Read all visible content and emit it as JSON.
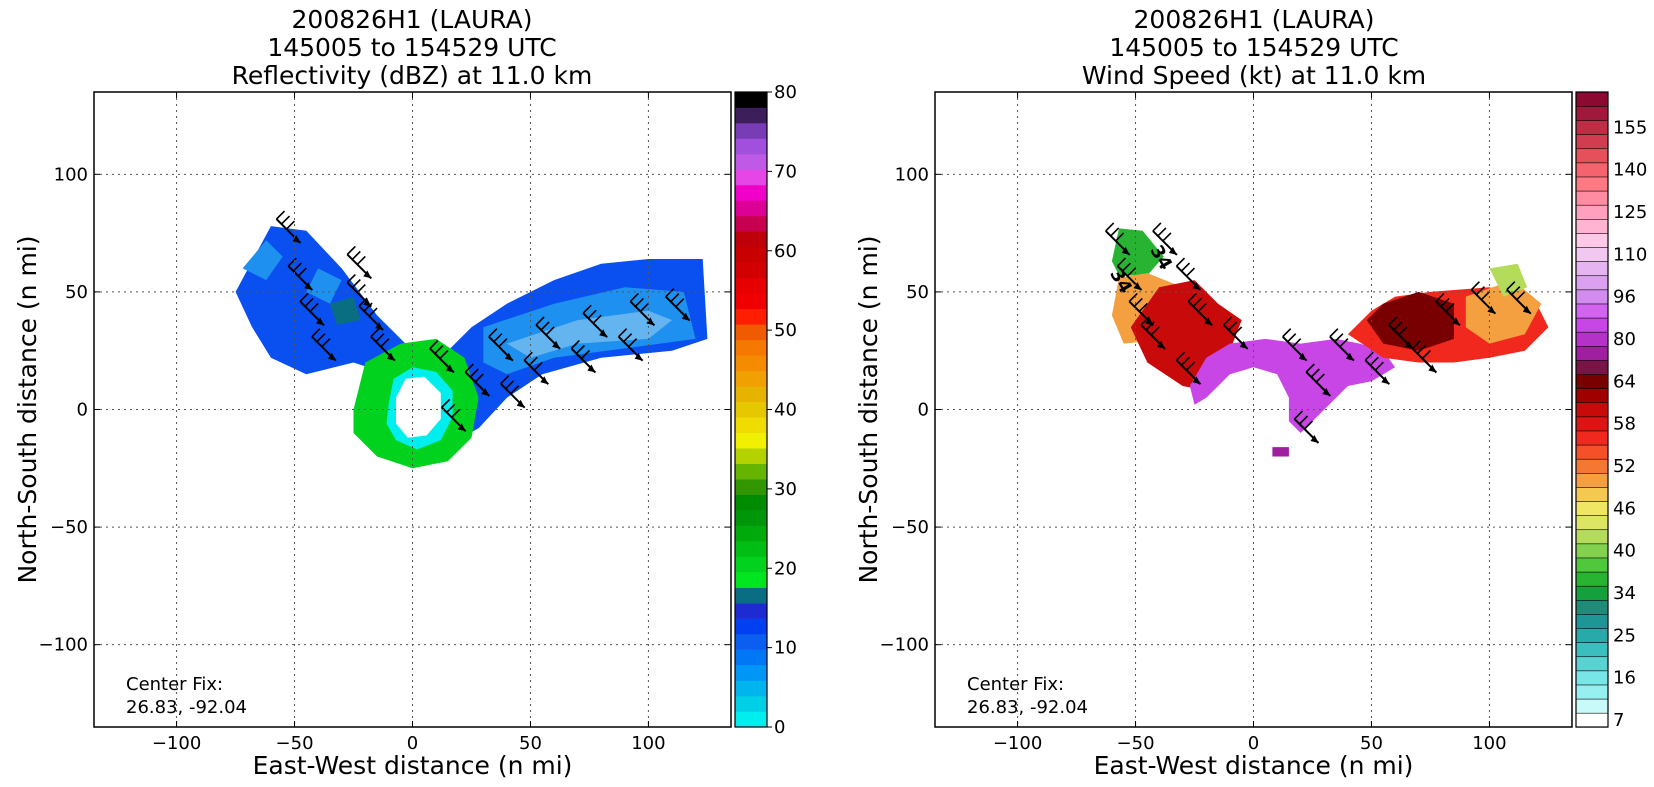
{
  "chart_data": [
    {
      "type": "heatmap",
      "title_lines": [
        "200826H1 (LAURA)",
        "145005 to 154529 UTC",
        "Reflectivity (dBZ) at 11.0 km"
      ],
      "xlabel": "East-West distance (n mi)",
      "ylabel": "North-South distance (n mi)",
      "xlim": [
        -135,
        135
      ],
      "ylim": [
        -135,
        135
      ],
      "xticks": [
        -100,
        -50,
        0,
        50,
        100
      ],
      "yticks": [
        -100,
        -50,
        0,
        50,
        100
      ],
      "grid": true,
      "annotation": [
        "Center Fix:",
        "26.83, -92.04"
      ],
      "colorbar": {
        "range": [
          0,
          80
        ],
        "tick_labels": [
          "0",
          "10",
          "20",
          "30",
          "40",
          "50",
          "60",
          "70",
          "80"
        ],
        "tick_values": [
          0,
          10,
          20,
          30,
          40,
          50,
          60,
          70,
          80
        ],
        "colors": [
          "#00eeee",
          "#00d0e6",
          "#00b4ee",
          "#0096f5",
          "#0078f5",
          "#0a5ef0",
          "#0040f0",
          "#1e2ad2",
          "#0a6e82",
          "#00e61e",
          "#00d21e",
          "#00be14",
          "#00aa0a",
          "#00960a",
          "#008c00",
          "#329600",
          "#64b400",
          "#b4d200",
          "#f0f000",
          "#f0dc00",
          "#e6c800",
          "#e6b400",
          "#f0a000",
          "#f58c00",
          "#f57800",
          "#f05a00",
          "#ff1e00",
          "#f00000",
          "#e60000",
          "#d20000",
          "#c80000",
          "#be000a",
          "#c80050",
          "#dc0096",
          "#f000c8",
          "#e646e6",
          "#be5ae6",
          "#a050dc",
          "#783cb4",
          "#3c1e5a",
          "#000000"
        ]
      },
      "regions": [
        {
          "color": "#0a4ff0",
          "polygon": [
            [
              -75,
              50
            ],
            [
              -60,
              78
            ],
            [
              -45,
              76
            ],
            [
              -30,
              60
            ],
            [
              -15,
              40
            ],
            [
              -5,
              30
            ],
            [
              0,
              25
            ],
            [
              -10,
              15
            ],
            [
              -25,
              20
            ],
            [
              -45,
              15
            ],
            [
              -60,
              22
            ],
            [
              -68,
              35
            ]
          ]
        },
        {
          "color": "#1e90f0",
          "polygon": [
            [
              -72,
              60
            ],
            [
              -62,
              72
            ],
            [
              -55,
              65
            ],
            [
              -62,
              55
            ]
          ]
        },
        {
          "color": "#1e90f0",
          "polygon": [
            [
              -40,
              60
            ],
            [
              -30,
              55
            ],
            [
              -35,
              45
            ],
            [
              -45,
              50
            ]
          ]
        },
        {
          "color": "#0a6e82",
          "polygon": [
            [
              -35,
              45
            ],
            [
              -25,
              48
            ],
            [
              -22,
              38
            ],
            [
              -32,
              36
            ]
          ]
        },
        {
          "color": "#0a4ff0",
          "polygon": [
            [
              25,
              35
            ],
            [
              40,
              45
            ],
            [
              60,
              55
            ],
            [
              80,
              62
            ],
            [
              100,
              64
            ],
            [
              123,
              64
            ],
            [
              125,
              30
            ],
            [
              110,
              25
            ],
            [
              80,
              22
            ],
            [
              55,
              15
            ],
            [
              40,
              5
            ],
            [
              28,
              -8
            ],
            [
              15,
              -15
            ],
            [
              5,
              -15
            ],
            [
              15,
              10
            ],
            [
              15,
              25
            ]
          ]
        },
        {
          "color": "#1e90f0",
          "polygon": [
            [
              30,
              35
            ],
            [
              60,
              45
            ],
            [
              90,
              52
            ],
            [
              115,
              50
            ],
            [
              120,
              30
            ],
            [
              90,
              26
            ],
            [
              60,
              22
            ],
            [
              40,
              15
            ],
            [
              30,
              20
            ]
          ]
        },
        {
          "color": "#64b4f0",
          "polygon": [
            [
              40,
              28
            ],
            [
              70,
              38
            ],
            [
              100,
              42
            ],
            [
              110,
              38
            ],
            [
              100,
              30
            ],
            [
              70,
              28
            ],
            [
              50,
              22
            ]
          ]
        },
        {
          "color": "#00d21e",
          "polygon": [
            [
              -25,
              0
            ],
            [
              -20,
              20
            ],
            [
              -5,
              28
            ],
            [
              10,
              30
            ],
            [
              22,
              22
            ],
            [
              28,
              5
            ],
            [
              25,
              -12
            ],
            [
              15,
              -22
            ],
            [
              0,
              -25
            ],
            [
              -15,
              -20
            ],
            [
              -25,
              -10
            ]
          ]
        },
        {
          "color": "#00eeee",
          "polygon": [
            [
              -10,
              3
            ],
            [
              -8,
              13
            ],
            [
              0,
              18
            ],
            [
              10,
              16
            ],
            [
              17,
              8
            ],
            [
              17,
              -3
            ],
            [
              12,
              -13
            ],
            [
              2,
              -17
            ],
            [
              -7,
              -13
            ],
            [
              -11,
              -6
            ]
          ]
        },
        {
          "color": "#ffffff",
          "polygon": [
            [
              -7,
              5
            ],
            [
              -3,
              13
            ],
            [
              5,
              14
            ],
            [
              12,
              7
            ],
            [
              12,
              -4
            ],
            [
              6,
              -11
            ],
            [
              -2,
              -12
            ],
            [
              -7,
              -6
            ]
          ]
        }
      ],
      "wind_barbs": [
        {
          "x": -50,
          "y": 75
        },
        {
          "x": -20,
          "y": 60
        },
        {
          "x": -45,
          "y": 55
        },
        {
          "x": -20,
          "y": 48
        },
        {
          "x": -40,
          "y": 40
        },
        {
          "x": -15,
          "y": 38
        },
        {
          "x": -35,
          "y": 25
        },
        {
          "x": -10,
          "y": 25
        },
        {
          "x": 15,
          "y": 20
        },
        {
          "x": 40,
          "y": 25
        },
        {
          "x": 60,
          "y": 30
        },
        {
          "x": 80,
          "y": 35
        },
        {
          "x": 100,
          "y": 40
        },
        {
          "x": 115,
          "y": 42
        },
        {
          "x": 30,
          "y": 10
        },
        {
          "x": 55,
          "y": 15
        },
        {
          "x": 75,
          "y": 20
        },
        {
          "x": 95,
          "y": 25
        },
        {
          "x": 20,
          "y": -5
        },
        {
          "x": 45,
          "y": 5
        }
      ]
    },
    {
      "type": "heatmap",
      "title_lines": [
        "200826H1 (LAURA)",
        "145005 to 154529 UTC",
        "Wind Speed (kt) at 11.0 km"
      ],
      "xlabel": "East-West distance (n mi)",
      "ylabel": "North-South distance (n mi)",
      "xlim": [
        -135,
        135
      ],
      "ylim": [
        -135,
        135
      ],
      "xticks": [
        -100,
        -50,
        0,
        50,
        100
      ],
      "yticks": [
        -100,
        -50,
        0,
        50,
        100
      ],
      "grid": true,
      "annotation": [
        "Center Fix:",
        "26.83, -92.04"
      ],
      "contour_labels": [
        "34",
        "34"
      ],
      "colorbar": {
        "tick_labels": [
          "7",
          "16",
          "25",
          "34",
          "40",
          "46",
          "52",
          "58",
          "64",
          "80",
          "96",
          "110",
          "125",
          "140",
          "155"
        ],
        "colors": [
          "#ffffff",
          "#c8fafa",
          "#96f0f0",
          "#78e6e6",
          "#5ad2d2",
          "#3cbebe",
          "#28aaaa",
          "#1e9696",
          "#1e8c78",
          "#14a03c",
          "#28b432",
          "#50c83c",
          "#82d250",
          "#b4dc5a",
          "#dce664",
          "#f0e664",
          "#f5c850",
          "#f5a040",
          "#f57832",
          "#f55028",
          "#f0281e",
          "#dc1414",
          "#c80a0a",
          "#a00000",
          "#780000",
          "#781446",
          "#a01ea0",
          "#b432c8",
          "#c846e6",
          "#d264f0",
          "#d28cf0",
          "#dca0f0",
          "#e6b4f0",
          "#f0c8f0",
          "#ffc8e6",
          "#ffb4d2",
          "#ffa0be",
          "#ff8ca0",
          "#ff7882",
          "#f5646e",
          "#e6505a",
          "#d23c50",
          "#be2d46",
          "#a0193c",
          "#8c0a32"
        ]
      },
      "regions": [
        {
          "color": "#28b432",
          "polygon": [
            [
              -57,
              77
            ],
            [
              -47,
              76
            ],
            [
              -38,
              65
            ],
            [
              -45,
              57
            ],
            [
              -57,
              57
            ],
            [
              -60,
              63
            ]
          ]
        },
        {
          "color": "#f5a040",
          "polygon": [
            [
              -57,
              56
            ],
            [
              -45,
              58
            ],
            [
              -30,
              52
            ],
            [
              -25,
              40
            ],
            [
              -35,
              30
            ],
            [
              -55,
              28
            ],
            [
              -60,
              40
            ]
          ]
        },
        {
          "color": "#c80a0a",
          "polygon": [
            [
              -52,
              35
            ],
            [
              -40,
              52
            ],
            [
              -25,
              55
            ],
            [
              -15,
              45
            ],
            [
              -5,
              38
            ],
            [
              -10,
              25
            ],
            [
              -20,
              8
            ],
            [
              -30,
              10
            ],
            [
              -45,
              20
            ]
          ]
        },
        {
          "color": "#c846e6",
          "polygon": [
            [
              -27,
              10
            ],
            [
              -20,
              22
            ],
            [
              -10,
              28
            ],
            [
              5,
              30
            ],
            [
              20,
              28
            ],
            [
              35,
              30
            ],
            [
              45,
              28
            ],
            [
              55,
              25
            ],
            [
              60,
              18
            ],
            [
              50,
              12
            ],
            [
              40,
              10
            ],
            [
              35,
              5
            ],
            [
              25,
              -5
            ],
            [
              20,
              -10
            ],
            [
              15,
              -5
            ],
            [
              15,
              5
            ],
            [
              10,
              15
            ],
            [
              0,
              18
            ],
            [
              -10,
              15
            ],
            [
              -15,
              10
            ],
            [
              -20,
              5
            ],
            [
              -25,
              2
            ]
          ]
        },
        {
          "color": "#f0281e",
          "polygon": [
            [
              40,
              32
            ],
            [
              50,
              42
            ],
            [
              60,
              48
            ],
            [
              75,
              50
            ],
            [
              100,
              52
            ],
            [
              120,
              45
            ],
            [
              125,
              35
            ],
            [
              115,
              25
            ],
            [
              100,
              22
            ],
            [
              85,
              20
            ],
            [
              70,
              20
            ],
            [
              55,
              22
            ]
          ]
        },
        {
          "color": "#780000",
          "polygon": [
            [
              48,
              38
            ],
            [
              55,
              45
            ],
            [
              70,
              50
            ],
            [
              85,
              45
            ],
            [
              85,
              30
            ],
            [
              70,
              25
            ],
            [
              55,
              28
            ]
          ]
        },
        {
          "color": "#f5a040",
          "polygon": [
            [
              90,
              48
            ],
            [
              110,
              55
            ],
            [
              122,
              45
            ],
            [
              115,
              32
            ],
            [
              100,
              28
            ],
            [
              90,
              35
            ]
          ]
        },
        {
          "color": "#b4dc5a",
          "polygon": [
            [
              100,
              60
            ],
            [
              112,
              62
            ],
            [
              116,
              52
            ],
            [
              106,
              48
            ]
          ]
        },
        {
          "color": "#a01ea0",
          "polygon": [
            [
              8,
              -20
            ],
            [
              15,
              -20
            ],
            [
              15,
              -16
            ],
            [
              8,
              -16
            ]
          ]
        }
      ],
      "wind_barbs": [
        {
          "x": -55,
          "y": 70
        },
        {
          "x": -35,
          "y": 70
        },
        {
          "x": -50,
          "y": 55
        },
        {
          "x": -25,
          "y": 55
        },
        {
          "x": -45,
          "y": 40
        },
        {
          "x": -20,
          "y": 40
        },
        {
          "x": -40,
          "y": 30
        },
        {
          "x": -5,
          "y": 30
        },
        {
          "x": -25,
          "y": 15
        },
        {
          "x": 20,
          "y": 25
        },
        {
          "x": 40,
          "y": 25
        },
        {
          "x": 65,
          "y": 30
        },
        {
          "x": 85,
          "y": 40
        },
        {
          "x": 100,
          "y": 45
        },
        {
          "x": 115,
          "y": 45
        },
        {
          "x": 30,
          "y": 10
        },
        {
          "x": 55,
          "y": 15
        },
        {
          "x": 75,
          "y": 20
        },
        {
          "x": 25,
          "y": -10
        }
      ]
    }
  ]
}
